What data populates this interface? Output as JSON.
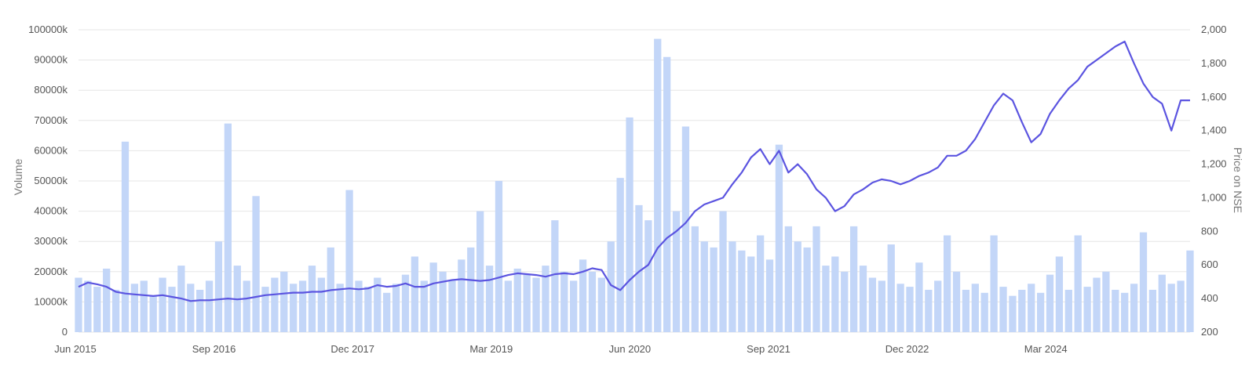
{
  "chart_data": {
    "type": "bar",
    "xlabel": "",
    "left_axis": {
      "label": "Volume",
      "ticks": [
        "0",
        "10000k",
        "20000k",
        "30000k",
        "40000k",
        "50000k",
        "60000k",
        "70000k",
        "80000k",
        "90000k",
        "100000k"
      ],
      "ylim": [
        0,
        100000000
      ]
    },
    "right_axis": {
      "label": "Price on NSE",
      "ticks": [
        "200",
        "400",
        "600",
        "800",
        "1,000",
        "1,200",
        "1,400",
        "1,600",
        "1,800",
        "2,000"
      ],
      "ylim": [
        200,
        2000
      ]
    },
    "x_tick_labels": [
      "Jun 2015",
      "Sep 2016",
      "Dec 2017",
      "Mar 2019",
      "Jun 2020",
      "Sep 2021",
      "Dec 2022",
      "Mar 2024"
    ],
    "x_range": [
      "2015-06",
      "2025-05"
    ],
    "grid": true,
    "legend": "none",
    "colors": {
      "volume_bars": "#c3d6f8",
      "price_line": "#5b54e0"
    },
    "series": [
      {
        "name": "Volume",
        "axis": "left",
        "kind": "bar",
        "x": [
          "2015-06",
          "2015-07",
          "2015-08",
          "2015-09",
          "2015-10",
          "2015-11",
          "2015-12",
          "2016-01",
          "2016-02",
          "2016-03",
          "2016-04",
          "2016-05",
          "2016-06",
          "2016-07",
          "2016-08",
          "2016-09",
          "2016-10",
          "2016-11",
          "2016-12",
          "2017-01",
          "2017-02",
          "2017-03",
          "2017-04",
          "2017-05",
          "2017-06",
          "2017-07",
          "2017-08",
          "2017-09",
          "2017-10",
          "2017-11",
          "2017-12",
          "2018-01",
          "2018-02",
          "2018-03",
          "2018-04",
          "2018-05",
          "2018-06",
          "2018-07",
          "2018-08",
          "2018-09",
          "2018-10",
          "2018-11",
          "2018-12",
          "2019-01",
          "2019-02",
          "2019-03",
          "2019-04",
          "2019-05",
          "2019-06",
          "2019-07",
          "2019-08",
          "2019-09",
          "2019-10",
          "2019-11",
          "2019-12",
          "2020-01",
          "2020-02",
          "2020-03",
          "2020-04",
          "2020-05",
          "2020-06",
          "2020-07",
          "2020-08",
          "2020-09",
          "2020-10",
          "2020-11",
          "2020-12",
          "2021-01",
          "2021-02",
          "2021-03",
          "2021-04",
          "2021-05",
          "2021-06",
          "2021-07",
          "2021-08",
          "2021-09",
          "2021-10",
          "2021-11",
          "2021-12",
          "2022-01",
          "2022-02",
          "2022-03",
          "2022-04",
          "2022-05",
          "2022-06",
          "2022-07",
          "2022-08",
          "2022-09",
          "2022-10",
          "2022-11",
          "2022-12",
          "2023-01",
          "2023-02",
          "2023-03",
          "2023-04",
          "2023-05",
          "2023-06",
          "2023-07",
          "2023-08",
          "2023-09",
          "2023-10",
          "2023-11",
          "2023-12",
          "2024-01",
          "2024-02",
          "2024-03",
          "2024-04",
          "2024-05",
          "2024-06",
          "2024-07",
          "2024-08",
          "2024-09",
          "2024-10",
          "2024-11",
          "2024-12",
          "2025-01",
          "2025-02",
          "2025-03",
          "2025-04",
          "2025-05"
        ],
        "values": [
          18000000,
          17000000,
          15000000,
          21000000,
          14000000,
          63000000,
          16000000,
          17000000,
          12000000,
          18000000,
          15000000,
          22000000,
          16000000,
          14000000,
          17000000,
          30000000,
          69000000,
          22000000,
          17000000,
          45000000,
          15000000,
          18000000,
          20000000,
          16000000,
          17000000,
          22000000,
          18000000,
          28000000,
          16000000,
          47000000,
          17000000,
          15000000,
          18000000,
          13000000,
          16000000,
          19000000,
          25000000,
          17000000,
          23000000,
          20000000,
          17000000,
          24000000,
          28000000,
          40000000,
          22000000,
          50000000,
          17000000,
          21000000,
          19000000,
          18000000,
          22000000,
          37000000,
          20000000,
          17000000,
          24000000,
          20000000,
          18000000,
          30000000,
          51000000,
          71000000,
          42000000,
          37000000,
          97000000,
          91000000,
          40000000,
          68000000,
          35000000,
          30000000,
          28000000,
          40000000,
          30000000,
          27000000,
          25000000,
          32000000,
          24000000,
          62000000,
          35000000,
          30000000,
          28000000,
          35000000,
          22000000,
          25000000,
          20000000,
          35000000,
          22000000,
          18000000,
          17000000,
          29000000,
          16000000,
          15000000,
          23000000,
          14000000,
          17000000,
          32000000,
          20000000,
          14000000,
          16000000,
          13000000,
          32000000,
          15000000,
          12000000,
          14000000,
          16000000,
          13000000,
          19000000,
          25000000,
          14000000,
          32000000,
          15000000,
          18000000,
          20000000,
          14000000,
          13000000,
          16000000,
          33000000,
          14000000,
          19000000,
          16000000,
          17000000,
          27000000
        ]
      },
      {
        "name": "Price on NSE",
        "axis": "right",
        "kind": "line",
        "x": [
          "2015-06",
          "2015-07",
          "2015-08",
          "2015-09",
          "2015-10",
          "2015-11",
          "2015-12",
          "2016-01",
          "2016-02",
          "2016-03",
          "2016-04",
          "2016-05",
          "2016-06",
          "2016-07",
          "2016-08",
          "2016-09",
          "2016-10",
          "2016-11",
          "2016-12",
          "2017-01",
          "2017-02",
          "2017-03",
          "2017-04",
          "2017-05",
          "2017-06",
          "2017-07",
          "2017-08",
          "2017-09",
          "2017-10",
          "2017-11",
          "2017-12",
          "2018-01",
          "2018-02",
          "2018-03",
          "2018-04",
          "2018-05",
          "2018-06",
          "2018-07",
          "2018-08",
          "2018-09",
          "2018-10",
          "2018-11",
          "2018-12",
          "2019-01",
          "2019-02",
          "2019-03",
          "2019-04",
          "2019-05",
          "2019-06",
          "2019-07",
          "2019-08",
          "2019-09",
          "2019-10",
          "2019-11",
          "2019-12",
          "2020-01",
          "2020-02",
          "2020-03",
          "2020-04",
          "2020-05",
          "2020-06",
          "2020-07",
          "2020-08",
          "2020-09",
          "2020-10",
          "2020-11",
          "2020-12",
          "2021-01",
          "2021-02",
          "2021-03",
          "2021-04",
          "2021-05",
          "2021-06",
          "2021-07",
          "2021-08",
          "2021-09",
          "2021-10",
          "2021-11",
          "2021-12",
          "2022-01",
          "2022-02",
          "2022-03",
          "2022-04",
          "2022-05",
          "2022-06",
          "2022-07",
          "2022-08",
          "2022-09",
          "2022-10",
          "2022-11",
          "2022-12",
          "2023-01",
          "2023-02",
          "2023-03",
          "2023-04",
          "2023-05",
          "2023-06",
          "2023-07",
          "2023-08",
          "2023-09",
          "2023-10",
          "2023-11",
          "2023-12",
          "2024-01",
          "2024-02",
          "2024-03",
          "2024-04",
          "2024-05",
          "2024-06",
          "2024-07",
          "2024-08",
          "2024-09",
          "2024-10",
          "2024-11",
          "2024-12",
          "2025-01",
          "2025-02",
          "2025-03",
          "2025-04",
          "2025-05"
        ],
        "values": [
          470,
          495,
          485,
          470,
          440,
          430,
          425,
          420,
          415,
          420,
          410,
          400,
          385,
          390,
          390,
          395,
          400,
          395,
          400,
          410,
          420,
          425,
          430,
          435,
          435,
          440,
          440,
          450,
          455,
          460,
          455,
          460,
          480,
          470,
          475,
          490,
          470,
          470,
          490,
          500,
          510,
          515,
          510,
          505,
          510,
          525,
          540,
          550,
          545,
          540,
          530,
          545,
          550,
          545,
          560,
          580,
          570,
          480,
          450,
          510,
          560,
          600,
          700,
          760,
          800,
          850,
          920,
          960,
          980,
          1000,
          1080,
          1150,
          1240,
          1290,
          1200,
          1280,
          1150,
          1200,
          1140,
          1050,
          1000,
          920,
          950,
          1020,
          1050,
          1090,
          1110,
          1100,
          1080,
          1100,
          1130,
          1150,
          1180,
          1250,
          1250,
          1280,
          1350,
          1450,
          1550,
          1620,
          1580,
          1450,
          1330,
          1380,
          1500,
          1580,
          1650,
          1700,
          1780,
          1820,
          1860,
          1900,
          1930,
          1800,
          1680,
          1600,
          1560,
          1400,
          1580,
          1580
        ]
      }
    ]
  }
}
